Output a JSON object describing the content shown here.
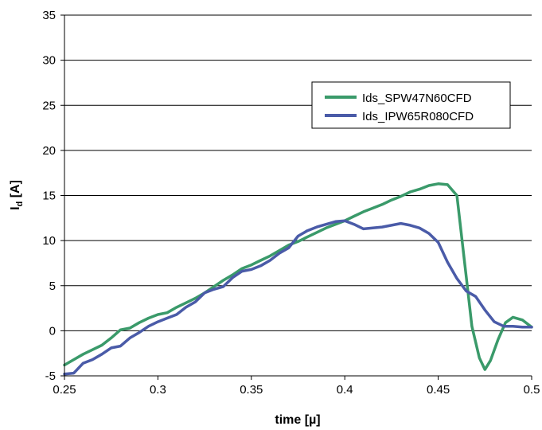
{
  "chart_data": {
    "type": "line",
    "title": "",
    "xlabel": "time [µ]",
    "ylabel": "I_d [A]",
    "ylabel_main": "I",
    "ylabel_sub": "d",
    "ylabel_unit": " [A]",
    "xlim": [
      0.25,
      0.5
    ],
    "ylim": [
      -5,
      35
    ],
    "xticks": [
      0.25,
      0.3,
      0.35,
      0.4,
      0.45,
      0.5
    ],
    "xtick_labels": [
      "0.25",
      "0.3",
      "0.35",
      "0.4",
      "0.45",
      "0.5"
    ],
    "yticks": [
      -5,
      0,
      5,
      10,
      15,
      20,
      25,
      30,
      35
    ],
    "ytick_labels": [
      "-5",
      "0",
      "5",
      "10",
      "15",
      "20",
      "25",
      "30",
      "35"
    ],
    "grid": "horizontal",
    "legend_position": "upper-right",
    "series": [
      {
        "name": "Ids_SPW47N60CFD",
        "color": "#3a9a6a",
        "x": [
          0.25,
          0.255,
          0.26,
          0.265,
          0.27,
          0.275,
          0.28,
          0.285,
          0.29,
          0.295,
          0.3,
          0.305,
          0.31,
          0.315,
          0.32,
          0.325,
          0.33,
          0.335,
          0.34,
          0.345,
          0.35,
          0.355,
          0.36,
          0.365,
          0.37,
          0.375,
          0.38,
          0.385,
          0.39,
          0.395,
          0.4,
          0.405,
          0.41,
          0.415,
          0.42,
          0.425,
          0.43,
          0.435,
          0.44,
          0.445,
          0.45,
          0.455,
          0.46,
          0.465,
          0.468,
          0.472,
          0.475,
          0.478,
          0.482,
          0.486,
          0.49,
          0.495,
          0.5
        ],
        "y": [
          -3.8,
          -3.2,
          -2.6,
          -2.1,
          -1.6,
          -0.8,
          0.1,
          0.3,
          0.9,
          1.4,
          1.8,
          2.0,
          2.6,
          3.1,
          3.6,
          4.2,
          4.9,
          5.6,
          6.2,
          6.9,
          7.3,
          7.8,
          8.3,
          8.9,
          9.5,
          9.9,
          10.4,
          10.9,
          11.4,
          11.8,
          12.2,
          12.7,
          13.2,
          13.6,
          14.0,
          14.5,
          14.9,
          15.4,
          15.7,
          16.1,
          16.3,
          16.2,
          15.0,
          6.0,
          0.5,
          -3.0,
          -4.3,
          -3.3,
          -1.0,
          0.9,
          1.5,
          1.2,
          0.4
        ]
      },
      {
        "name": "Ids_IPW65R080CFD",
        "color": "#4a5ba8",
        "x": [
          0.25,
          0.255,
          0.26,
          0.265,
          0.27,
          0.275,
          0.28,
          0.285,
          0.29,
          0.295,
          0.3,
          0.305,
          0.31,
          0.315,
          0.32,
          0.325,
          0.33,
          0.335,
          0.34,
          0.345,
          0.35,
          0.355,
          0.36,
          0.365,
          0.37,
          0.375,
          0.38,
          0.385,
          0.39,
          0.395,
          0.4,
          0.405,
          0.41,
          0.415,
          0.42,
          0.425,
          0.43,
          0.435,
          0.44,
          0.445,
          0.45,
          0.455,
          0.46,
          0.465,
          0.47,
          0.475,
          0.48,
          0.485,
          0.49,
          0.495,
          0.5
        ],
        "y": [
          -4.8,
          -4.7,
          -3.6,
          -3.2,
          -2.6,
          -1.9,
          -1.7,
          -0.8,
          -0.2,
          0.5,
          1.0,
          1.4,
          1.8,
          2.6,
          3.2,
          4.2,
          4.6,
          4.9,
          5.9,
          6.6,
          6.8,
          7.2,
          7.8,
          8.6,
          9.2,
          10.5,
          11.1,
          11.5,
          11.8,
          12.1,
          12.2,
          11.8,
          11.3,
          11.4,
          11.5,
          11.7,
          11.9,
          11.7,
          11.4,
          10.8,
          9.8,
          7.6,
          5.8,
          4.4,
          3.8,
          2.3,
          1.0,
          0.5,
          0.5,
          0.4,
          0.4
        ]
      }
    ]
  }
}
